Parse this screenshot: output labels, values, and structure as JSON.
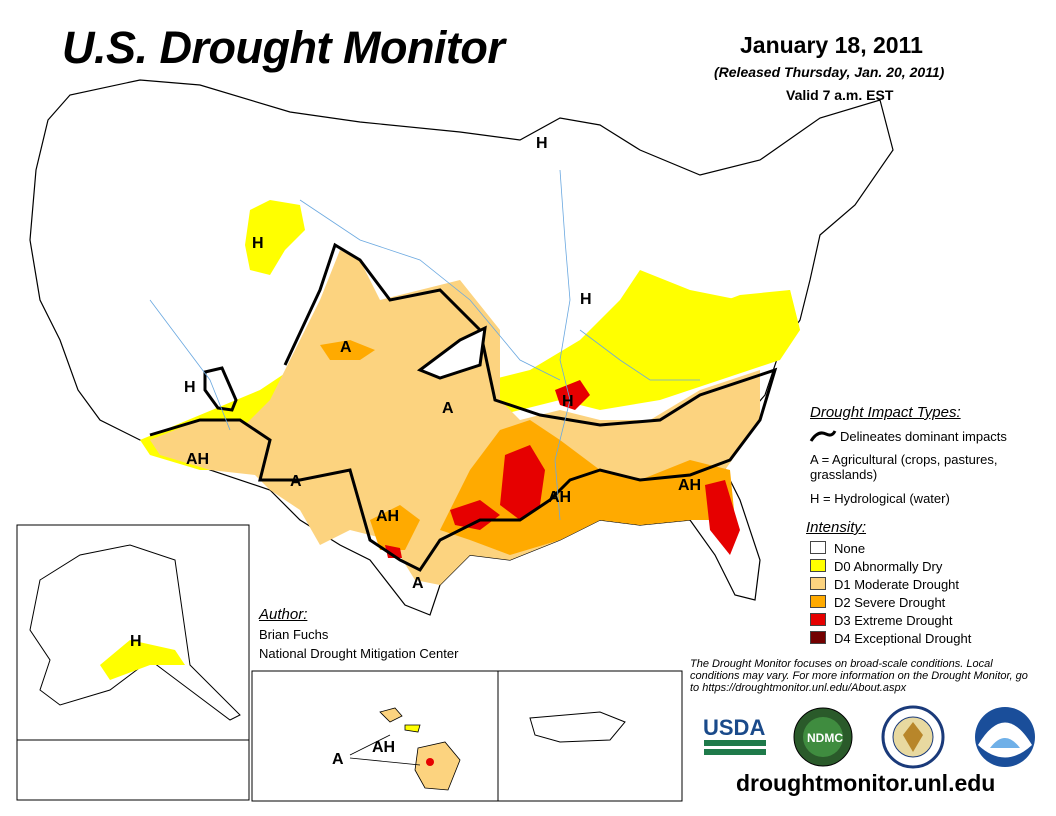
{
  "header": {
    "title": "U.S. Drought Monitor",
    "date": "January 18, 2011",
    "released": "(Released Thursday, Jan. 20, 2011)",
    "valid": "Valid 7 a.m. EST"
  },
  "impact_legend": {
    "heading": "Drought Impact Types:",
    "delineates": "Delineates dominant impacts",
    "agricultural": "A = Agricultural (crops, pastures, grasslands)",
    "hydrological": "H = Hydrological (water)"
  },
  "intensity_legend": {
    "heading": "Intensity:",
    "items": [
      {
        "label": "None",
        "color": "#ffffff"
      },
      {
        "label": "D0 Abnormally Dry",
        "color": "#ffff00"
      },
      {
        "label": "D1 Moderate Drought",
        "color": "#fcd37f"
      },
      {
        "label": "D2 Severe Drought",
        "color": "#ffaa00"
      },
      {
        "label": "D3 Extreme Drought",
        "color": "#e60000"
      },
      {
        "label": "D4 Exceptional Drought",
        "color": "#730000"
      }
    ]
  },
  "author": {
    "heading": "Author:",
    "name": "Brian Fuchs",
    "organization": "National Drought Mitigation Center"
  },
  "note": "The Drought Monitor focuses on broad-scale conditions. Local conditions may vary. For more information on the Drought Monitor, go to https://droughtmonitor.unl.edu/About.aspx",
  "website": "droughtmonitor.unl.edu",
  "logos": {
    "usda": "USDA",
    "ndmc": "NDMC"
  },
  "map_labels": {
    "impact_h": "H",
    "impact_a": "A",
    "impact_ah": "AH"
  },
  "colors": {
    "d0": "#ffff00",
    "d1": "#fcd37f",
    "d2": "#ffaa00",
    "d3": "#e60000",
    "d4": "#730000",
    "water": "#8fc8ee",
    "border": "#000000"
  }
}
